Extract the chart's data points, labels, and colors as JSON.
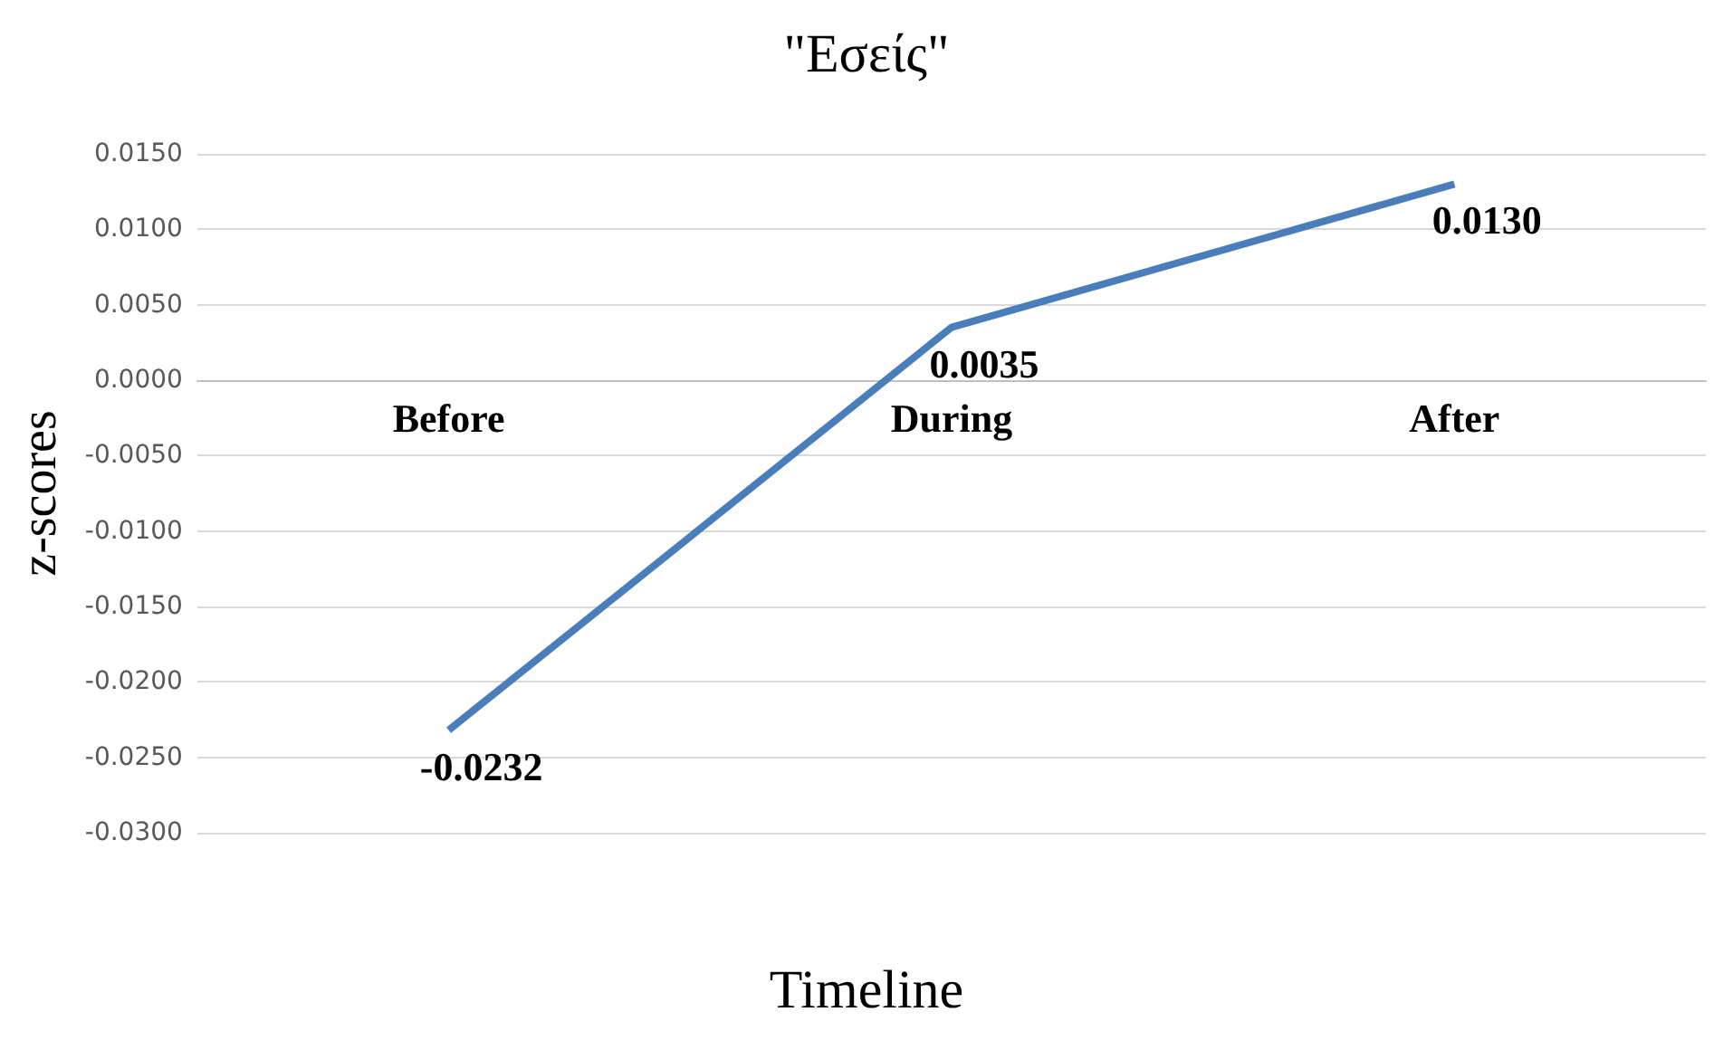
{
  "chart_data": {
    "type": "line",
    "title": "\"Εσείς\"",
    "xlabel": "Timeline",
    "ylabel": "z-scores",
    "categories": [
      "Before",
      "During",
      "After"
    ],
    "series": [
      {
        "color": "#4a7ebb",
        "values": [
          -0.0232,
          0.0035,
          0.013
        ]
      }
    ],
    "value_labels": [
      "-0.0232",
      "0.0035",
      "0.0130"
    ],
    "ylim": [
      -0.03,
      0.015
    ],
    "yticks": [
      {
        "value": -0.03,
        "label": "-0.0300"
      },
      {
        "value": -0.025,
        "label": "-0.0250"
      },
      {
        "value": -0.02,
        "label": "-0.0200"
      },
      {
        "value": -0.015,
        "label": "-0.0150"
      },
      {
        "value": -0.01,
        "label": "-0.0100"
      },
      {
        "value": -0.005,
        "label": "-0.0050"
      },
      {
        "value": 0,
        "label": "0.0000"
      },
      {
        "value": 0.005,
        "label": "0.0050"
      },
      {
        "value": 0.01,
        "label": "0.0100"
      },
      {
        "value": 0.015,
        "label": "0.0150"
      }
    ],
    "grid": "y",
    "marker": "none",
    "line_style": "solid"
  }
}
